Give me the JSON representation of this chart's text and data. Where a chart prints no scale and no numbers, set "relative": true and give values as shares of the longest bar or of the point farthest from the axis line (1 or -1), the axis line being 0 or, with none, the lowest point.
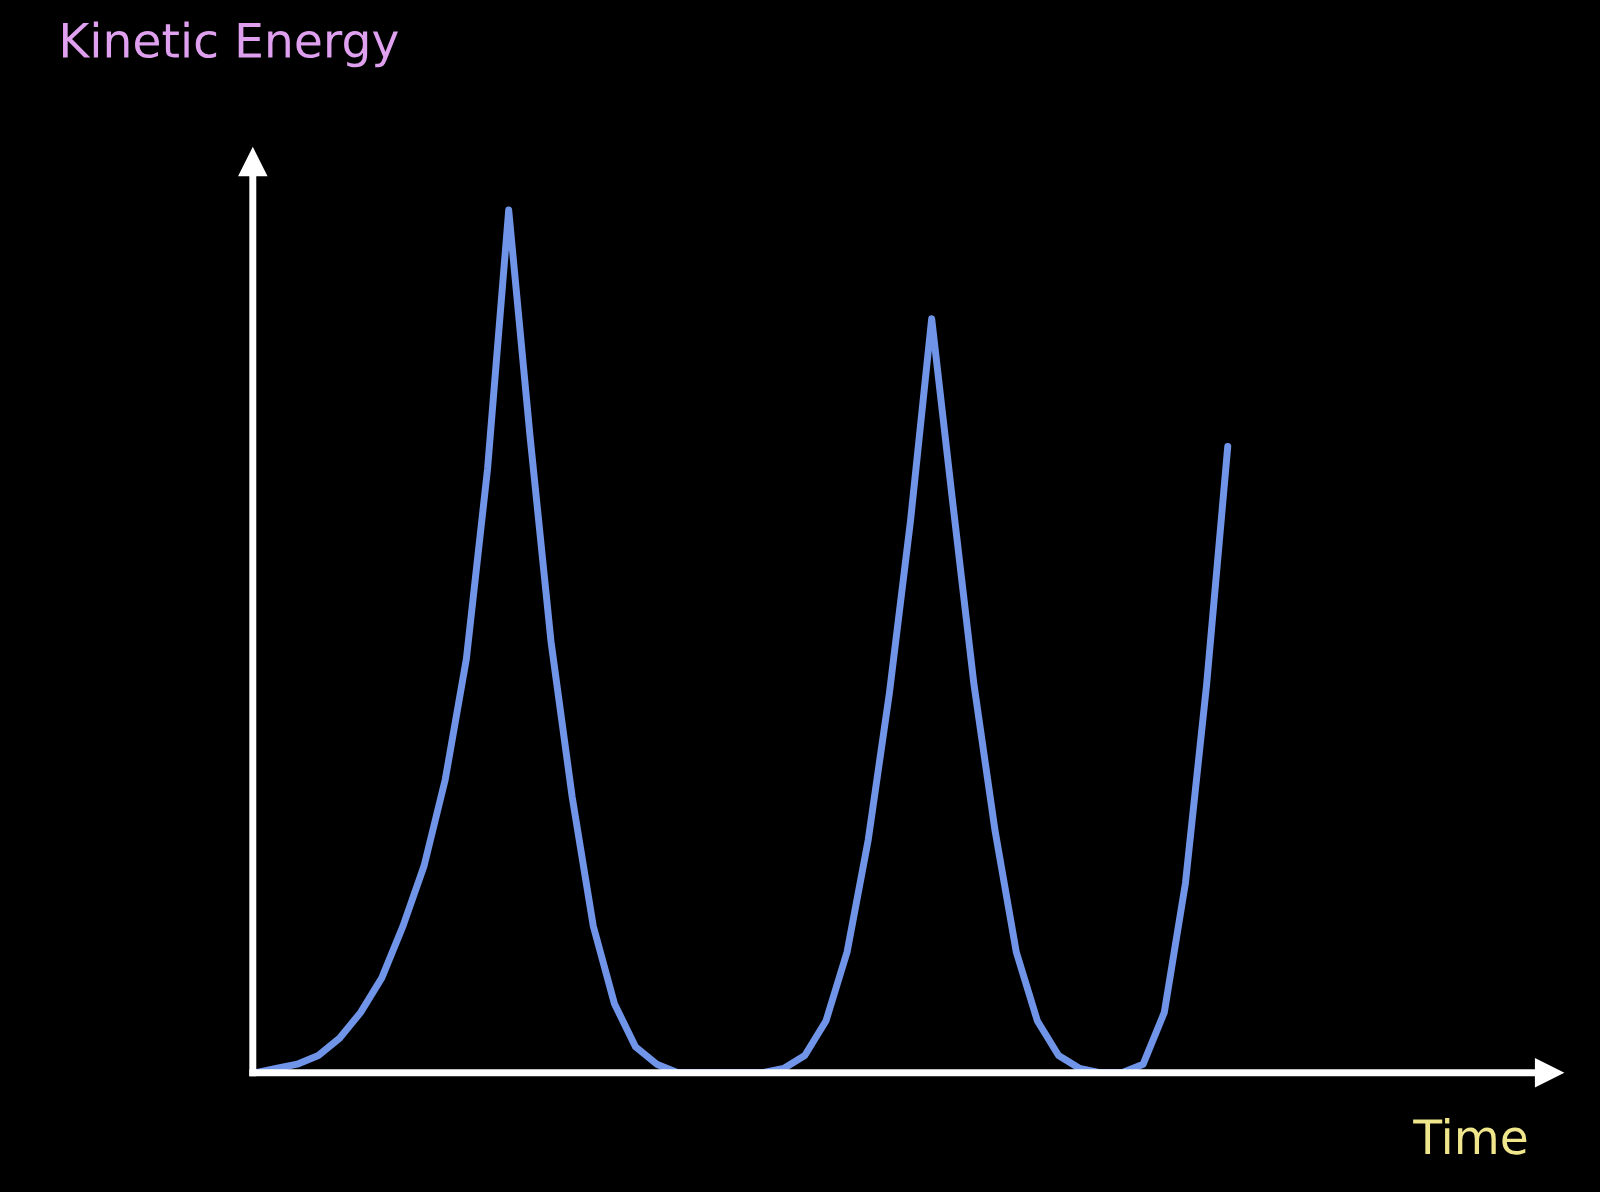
{
  "chart_data": {
    "type": "line",
    "relative": true,
    "xlabel": "Time",
    "ylabel": "Kinetic Energy",
    "legend": false,
    "marker": "none",
    "line_style": "solid",
    "categories": [
      null,
      null,
      null,
      null,
      null,
      null,
      null,
      null,
      null,
      null,
      null,
      null,
      null,
      null,
      null,
      null,
      null,
      null,
      null,
      null,
      null,
      null,
      null,
      null,
      null,
      null,
      null,
      null,
      null,
      null,
      null,
      null,
      null,
      null,
      null,
      null,
      null,
      null,
      null,
      null,
      null,
      null,
      null,
      null,
      null,
      null,
      null
    ],
    "series": [
      {
        "color": "#6f94e8",
        "values": [
          0,
          0.005,
          0.01,
          0.02,
          0.04,
          0.07,
          0.11,
          0.17,
          0.24,
          0.34,
          0.48,
          0.7,
          1.0,
          0.74,
          0.5,
          0.32,
          0.17,
          0.08,
          0.03,
          0.01,
          0,
          0,
          0,
          0,
          0,
          0.005,
          0.02,
          0.06,
          0.14,
          0.27,
          0.44,
          0.64,
          0.874,
          0.66,
          0.45,
          0.28,
          0.14,
          0.06,
          0.02,
          0.005,
          0,
          0,
          0.01,
          0.07,
          0.22,
          0.45,
          0.726
        ]
      }
    ]
  }
}
